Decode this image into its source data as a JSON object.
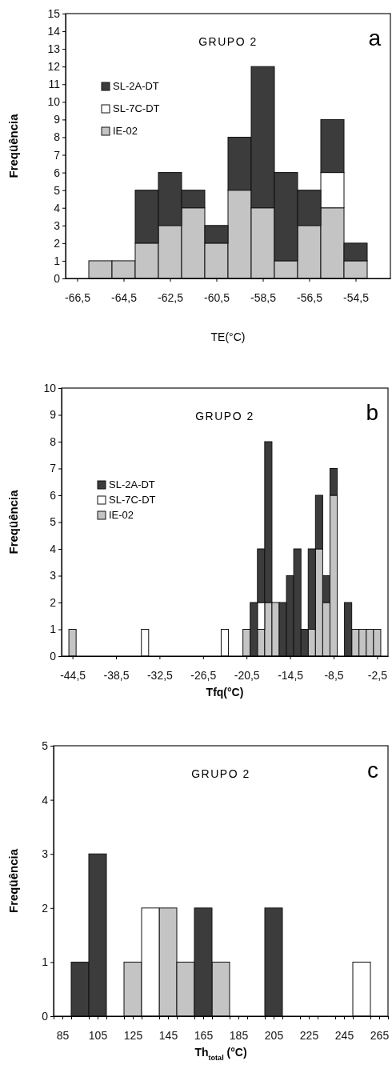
{
  "chart_data": [
    {
      "type": "bar",
      "title": "GRUPO 2",
      "xlabel": "TE(°C)",
      "ylabel": "Freqüência",
      "annotations": [
        "a"
      ],
      "stacked": true,
      "legend": "top left",
      "grid": false,
      "x": [
        -65.5,
        -64.5,
        -63.5,
        -62.5,
        -61.5,
        -60.5,
        -59.5,
        -58.5,
        -57.5,
        -56.5,
        -55.5,
        -54.5
      ],
      "series": [
        {
          "name": "IE-02",
          "color": "#c4c4c4",
          "values": [
            1,
            1,
            2,
            3,
            4,
            2,
            5,
            4,
            1,
            3,
            4,
            1
          ]
        },
        {
          "name": "SL-7C-DT",
          "color": "#ffffff",
          "values": [
            0,
            0,
            0,
            0,
            0,
            0,
            0,
            0,
            0,
            0,
            2,
            0
          ]
        },
        {
          "name": "SL-2A-DT",
          "color": "#3c3c3c",
          "values": [
            0,
            0,
            3,
            3,
            1,
            1,
            3,
            8,
            5,
            2,
            3,
            1
          ]
        }
      ],
      "xlim": [
        -67,
        -53
      ],
      "xticks": [
        {
          "value": -66.5,
          "label": "-66,5"
        },
        {
          "value": -64.5,
          "label": "-64,5"
        },
        {
          "value": -62.5,
          "label": "-62,5"
        },
        {
          "value": -60.5,
          "label": "-60,5"
        },
        {
          "value": -58.5,
          "label": "-58,5"
        },
        {
          "value": -56.5,
          "label": "-56,5"
        },
        {
          "value": -54.5,
          "label": "-54,5"
        }
      ],
      "ylim": [
        0,
        15
      ],
      "yticks": [
        0,
        1,
        2,
        3,
        4,
        5,
        6,
        7,
        8,
        9,
        10,
        11,
        12,
        13,
        14,
        15
      ]
    },
    {
      "type": "bar",
      "title": "GRUPO 2",
      "xlabel": "Tfq(°C)",
      "ylabel": "Freqüência",
      "annotations": [
        "b"
      ],
      "stacked": true,
      "legend": "top left",
      "grid": false,
      "x": [
        -44.5,
        -43.5,
        -42.5,
        -41.5,
        -40.5,
        -39.5,
        -38.5,
        -37.5,
        -36.5,
        -35.5,
        -34.5,
        -33.5,
        -32.5,
        -31.5,
        -30.5,
        -29.5,
        -28.5,
        -27.5,
        -26.5,
        -25.5,
        -24.5,
        -23.5,
        -22.5,
        -21.5,
        -20.5,
        -19.5,
        -18.5,
        -17.5,
        -16.5,
        -15.5,
        -14.5,
        -13.5,
        -12.5,
        -11.5,
        -10.5,
        -9.5,
        -8.5,
        -7.5,
        -6.5,
        -5.5,
        -4.5,
        -3.5,
        -2.5
      ],
      "series": [
        {
          "name": "IE-02",
          "color": "#c4c4c4",
          "values": [
            1,
            0,
            0,
            0,
            0,
            0,
            0,
            0,
            0,
            0,
            0,
            0,
            0,
            0,
            0,
            0,
            0,
            0,
            0,
            0,
            0,
            0,
            0,
            0,
            1,
            0,
            1,
            2,
            2,
            0,
            0,
            0,
            0,
            1,
            4,
            2,
            6,
            0,
            0,
            1,
            1,
            1,
            1
          ]
        },
        {
          "name": "SL-7C-DT",
          "color": "#ffffff",
          "values": [
            0,
            0,
            0,
            0,
            0,
            0,
            0,
            0,
            0,
            0,
            1,
            0,
            0,
            0,
            0,
            0,
            0,
            0,
            0,
            0,
            0,
            1,
            0,
            0,
            0,
            0,
            1,
            0,
            0,
            0,
            0,
            0,
            0,
            0,
            0,
            0,
            0,
            0,
            0,
            0,
            0,
            0,
            0
          ]
        },
        {
          "name": "SL-2A-DT",
          "color": "#3c3c3c",
          "values": [
            0,
            0,
            0,
            0,
            0,
            0,
            0,
            0,
            0,
            0,
            0,
            0,
            0,
            0,
            0,
            0,
            0,
            0,
            0,
            0,
            0,
            0,
            0,
            0,
            0,
            2,
            2,
            6,
            0,
            2,
            3,
            4,
            1,
            3,
            2,
            1,
            1,
            0,
            2,
            0,
            0,
            0,
            0
          ]
        }
      ],
      "xlim": [
        -46,
        -1
      ],
      "xticks": [
        {
          "value": -44.5,
          "label": "-44,5"
        },
        {
          "value": -38.5,
          "label": "-38,5"
        },
        {
          "value": -32.5,
          "label": "-32,5"
        },
        {
          "value": -26.5,
          "label": "-26,5"
        },
        {
          "value": -20.5,
          "label": "-20,5"
        },
        {
          "value": -14.5,
          "label": "-14,5"
        },
        {
          "value": -8.5,
          "label": "-8,5"
        },
        {
          "value": -2.5,
          "label": "-2,5"
        }
      ],
      "ylim": [
        0,
        10
      ],
      "yticks": [
        0,
        1,
        2,
        3,
        4,
        5,
        6,
        7,
        8,
        9,
        10
      ]
    },
    {
      "type": "bar",
      "title": "GRUPO 2",
      "xlabel": "Th$_{total}$ (°C)",
      "ylabel": "Freqüência",
      "annotations": [
        "c"
      ],
      "stacked": true,
      "grid": false,
      "x": [
        95,
        105,
        115,
        125,
        135,
        145,
        155,
        165,
        175,
        185,
        195,
        205,
        215,
        225,
        235,
        245,
        255
      ],
      "series": [
        {
          "color": "#c4c4c4",
          "values": [
            0,
            0,
            0,
            1,
            0,
            2,
            1,
            0,
            1,
            0,
            0,
            0,
            0,
            0,
            0,
            0,
            0
          ]
        },
        {
          "color": "#ffffff",
          "values": [
            0,
            0,
            0,
            0,
            2,
            0,
            0,
            0,
            0,
            0,
            0,
            0,
            0,
            0,
            0,
            0,
            1
          ]
        },
        {
          "color": "#3c3c3c",
          "values": [
            1,
            3,
            0,
            0,
            0,
            0,
            0,
            2,
            0,
            0,
            0,
            2,
            0,
            0,
            0,
            0,
            0
          ]
        }
      ],
      "xlim": [
        80,
        270
      ],
      "xticks": [
        {
          "value": 80,
          "label": null
        },
        {
          "value": 85,
          "label": "85"
        },
        {
          "value": 90,
          "label": null
        },
        {
          "value": 100,
          "label": null
        },
        {
          "value": 105,
          "label": "105"
        },
        {
          "value": 110,
          "label": null
        },
        {
          "value": 120,
          "label": null
        },
        {
          "value": 125,
          "label": "125"
        },
        {
          "value": 130,
          "label": null
        },
        {
          "value": 140,
          "label": null
        },
        {
          "value": 145,
          "label": "145"
        },
        {
          "value": 150,
          "label": null
        },
        {
          "value": 160,
          "label": null
        },
        {
          "value": 165,
          "label": "165"
        },
        {
          "value": 170,
          "label": null
        },
        {
          "value": 180,
          "label": null
        },
        {
          "value": 185,
          "label": "185"
        },
        {
          "value": 190,
          "label": null
        },
        {
          "value": 200,
          "label": null
        },
        {
          "value": 205,
          "label": "205"
        },
        {
          "value": 210,
          "label": null
        },
        {
          "value": 220,
          "label": null
        },
        {
          "value": 225,
          "label": "225"
        },
        {
          "value": 230,
          "label": null
        },
        {
          "value": 240,
          "label": null
        },
        {
          "value": 245,
          "label": "245"
        },
        {
          "value": 250,
          "label": null
        },
        {
          "value": 260,
          "label": null
        },
        {
          "value": 265,
          "label": "265"
        },
        {
          "value": 270,
          "label": null
        }
      ],
      "ylim": [
        0,
        5
      ],
      "yticks": [
        0,
        1,
        2,
        3,
        4,
        5
      ]
    }
  ]
}
